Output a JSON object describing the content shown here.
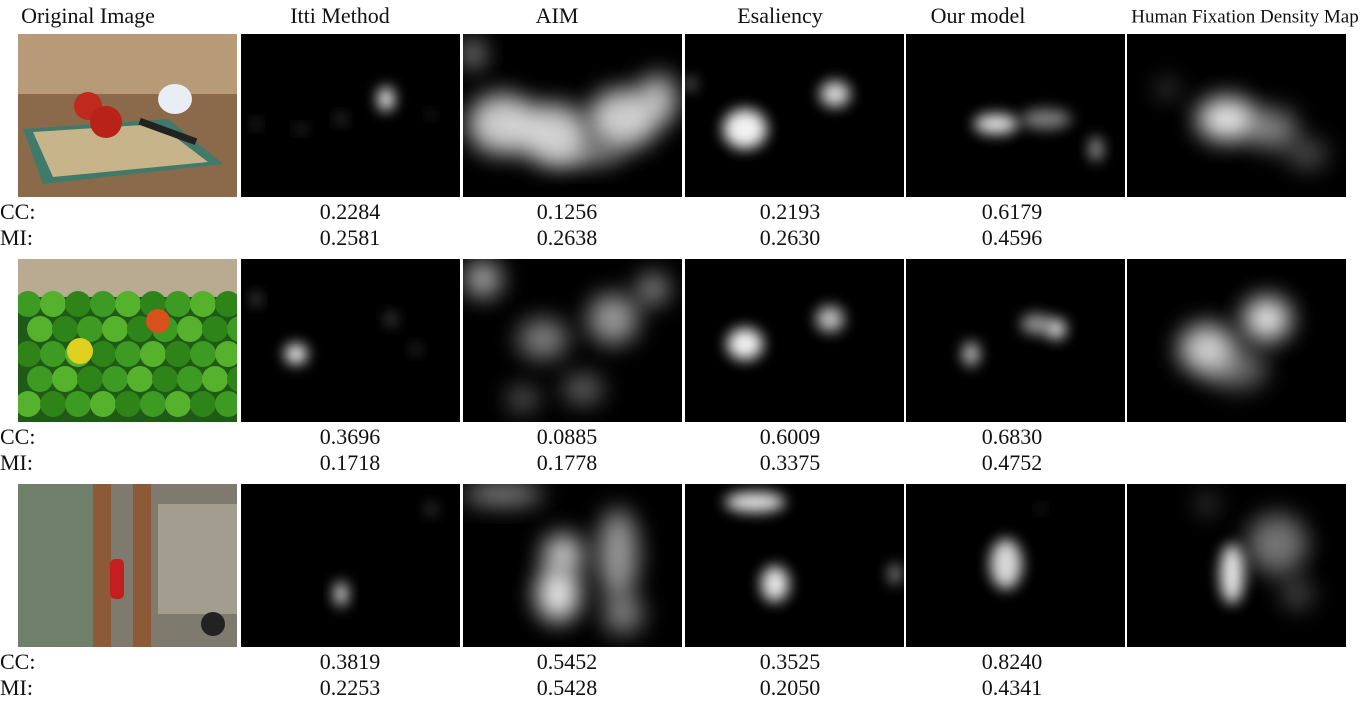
{
  "header": {
    "columns": [
      "Original Image",
      "Itti Method",
      "AIM",
      "Esaliency",
      "Our model",
      "Human Fixation Density Map"
    ]
  },
  "rows": [
    {
      "cc_label": "CC:",
      "mi_label": "MI:",
      "cc": [
        "0.2284",
        "0.1256",
        "0.2193",
        "0.6179"
      ],
      "mi": [
        "0.2581",
        "0.2638",
        "0.2630",
        "0.4596"
      ]
    },
    {
      "cc_label": "CC:",
      "mi_label": "MI:",
      "cc": [
        "0.3696",
        "0.0885",
        "0.6009",
        "0.6830"
      ],
      "mi": [
        "0.1718",
        "0.1778",
        "0.3375",
        "0.4752"
      ]
    },
    {
      "cc_label": "CC:",
      "mi_label": "MI:",
      "cc": [
        "0.3819",
        "0.5452",
        "0.3525",
        "0.8240"
      ],
      "mi": [
        "0.2253",
        "0.5428",
        "0.2050",
        "0.4341"
      ]
    }
  ]
}
